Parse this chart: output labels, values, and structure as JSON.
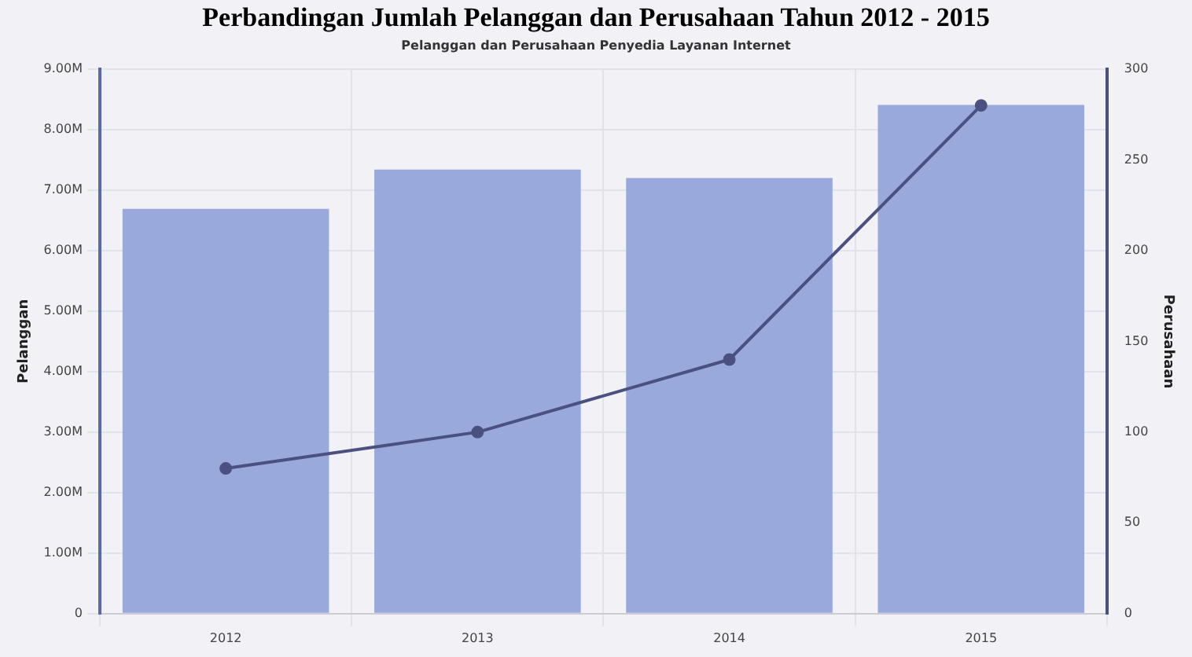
{
  "chart_data": {
    "type": "bar",
    "title": "Perbandingan Jumlah Pelanggan dan Perusahaan Tahun 2012 - 2015",
    "subtitle": "Pelanggan dan Perusahaan Penyedia Layanan Internet",
    "categories": [
      "2012",
      "2013",
      "2014",
      "2015"
    ],
    "series": [
      {
        "color": "#9aa9dc",
        "values": [
          6690000,
          7340000,
          7200000,
          8410000
        ]
      },
      {
        "type": "line",
        "axis": "y2",
        "color": "#4a5180",
        "values": [
          80,
          100,
          140,
          280
        ]
      }
    ],
    "ylabel": "Pelanggan",
    "y2label": "Perusahaan",
    "ylim": [
      0,
      9000000
    ],
    "yticks": [
      0,
      {
        "value": 1000000,
        "label": "1.00M"
      },
      {
        "value": 2000000,
        "label": "2.00M"
      },
      {
        "value": 3000000,
        "label": "3.00M"
      },
      {
        "value": 4000000,
        "label": "4.00M"
      },
      {
        "value": 5000000,
        "label": "5.00M"
      },
      {
        "value": 6000000,
        "label": "6.00M"
      },
      {
        "value": 7000000,
        "label": "7.00M"
      },
      {
        "value": 8000000,
        "label": "8.00M"
      },
      {
        "value": 9000000,
        "label": "9.00M"
      }
    ],
    "y2lim": [
      0,
      300
    ],
    "y2ticks": [
      0,
      50,
      100,
      150,
      200,
      250,
      300
    ],
    "grid": true,
    "legend": false,
    "marker": "circle",
    "line_style": "solid"
  }
}
